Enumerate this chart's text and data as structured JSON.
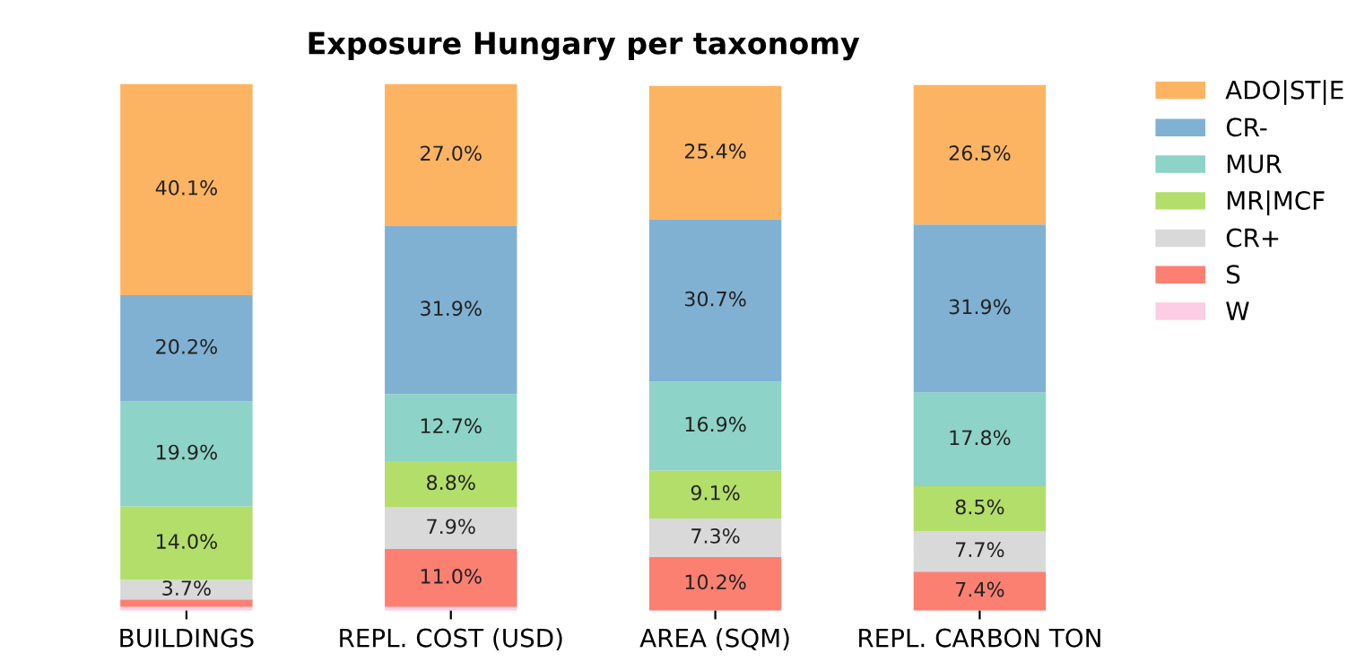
{
  "chart_data": {
    "type": "bar",
    "title": "Exposure Hungary per taxonomy",
    "stacked": true,
    "legend": "top right",
    "grid": false,
    "categories": [
      "BUILDINGS",
      "REPL. COST (USD)",
      "AREA (SQM)",
      "REPL. CARBON TON"
    ],
    "series": [
      {
        "name": "W",
        "color": "#fccde5",
        "values": [
          0.7,
          0.7,
          null,
          null
        ],
        "value_labels": [
          null,
          null,
          null,
          null
        ]
      },
      {
        "name": "S",
        "color": "#fb8072",
        "values": [
          1.4,
          11.0,
          10.2,
          7.4
        ],
        "value_labels": [
          null,
          "11.0%",
          "10.2%",
          "7.4%"
        ]
      },
      {
        "name": "CR+",
        "color": "#d9d9d9",
        "values": [
          3.7,
          7.9,
          7.3,
          7.7
        ],
        "value_labels": [
          "3.7%",
          "7.9%",
          "7.3%",
          "7.7%"
        ]
      },
      {
        "name": "MR|MCF",
        "color": "#b3de69",
        "values": [
          14.0,
          8.8,
          9.1,
          8.5
        ],
        "value_labels": [
          "14.0%",
          "8.8%",
          "9.1%",
          "8.5%"
        ]
      },
      {
        "name": "MUR",
        "color": "#8dd3c7",
        "values": [
          19.9,
          12.7,
          16.9,
          17.8
        ],
        "value_labels": [
          "19.9%",
          "12.7%",
          "16.9%",
          "17.8%"
        ]
      },
      {
        "name": "CR-",
        "color": "#80b1d3",
        "values": [
          20.2,
          31.9,
          30.7,
          31.9
        ],
        "value_labels": [
          "20.2%",
          "31.9%",
          "30.7%",
          "31.9%"
        ]
      },
      {
        "name": "ADO|ST|E",
        "color": "#fdb462",
        "values": [
          40.1,
          27.0,
          25.4,
          26.5
        ],
        "value_labels": [
          "40.1%",
          "27.0%",
          "25.4%",
          "26.5%"
        ]
      }
    ]
  }
}
